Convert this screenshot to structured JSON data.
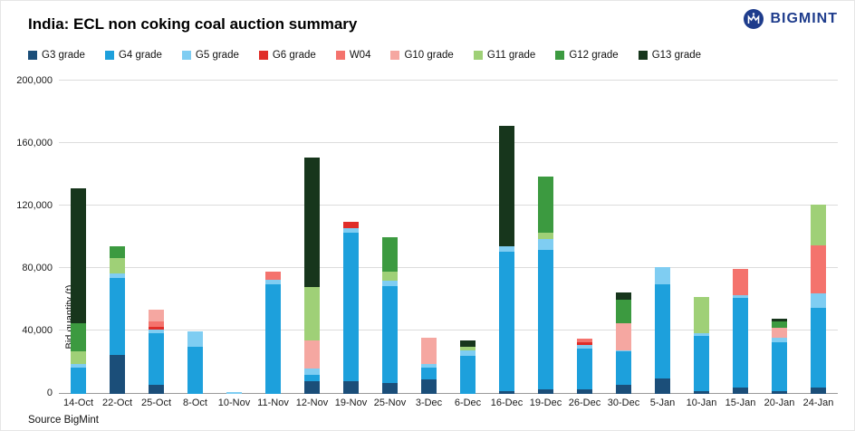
{
  "header": {
    "title": "India: ECL non coking coal auction summary",
    "logo_text": "BIGMINT",
    "logo_color": "#1e3c8c"
  },
  "footer": {
    "source_text": "Source BigMint"
  },
  "chart_data": {
    "type": "bar",
    "subtype": "stacked",
    "title": "India: ECL non coking coal auction summary",
    "xlabel": "",
    "ylabel": "Bid quantity (t)",
    "ylim": [
      0,
      200000
    ],
    "ytick_step": 40000,
    "yticks": [
      "0",
      "40,000",
      "80,000",
      "120,000",
      "160,000",
      "200,000"
    ],
    "grid": "horizontal",
    "legend_position": "top",
    "categories": [
      "14-Oct",
      "22-Oct",
      "25-Oct",
      "8-Oct",
      "10-Nov",
      "11-Nov",
      "12-Nov",
      "19-Nov",
      "25-Nov",
      "3-Dec",
      "6-Dec",
      "16-Dec",
      "19-Dec",
      "26-Dec",
      "30-Dec",
      "5-Jan",
      "10-Jan",
      "15-Jan",
      "20-Jan",
      "24-Jan"
    ],
    "series": [
      {
        "name": "G3 grade",
        "color": "#1b4e79",
        "values": [
          0,
          25000,
          6000,
          0,
          0,
          0,
          8000,
          8000,
          7000,
          9000,
          0,
          2000,
          3000,
          3000,
          6000,
          10000,
          2000,
          4000,
          2000,
          4000
        ]
      },
      {
        "name": "G4 grade",
        "color": "#1da0dc",
        "values": [
          17000,
          49000,
          33000,
          30000,
          0,
          70000,
          4000,
          95000,
          62000,
          8000,
          24000,
          89000,
          89000,
          26000,
          21000,
          60000,
          35000,
          57000,
          31000,
          51000
        ]
      },
      {
        "name": "G5 grade",
        "color": "#7fcdf2",
        "values": [
          2000,
          3000,
          2000,
          10000,
          1000,
          3000,
          4000,
          3000,
          3000,
          2000,
          4000,
          3000,
          7000,
          2000,
          1000,
          11000,
          2000,
          2000,
          3000,
          9000
        ]
      },
      {
        "name": "G6 grade",
        "color": "#e02d28",
        "values": [
          0,
          0,
          2000,
          0,
          0,
          0,
          0,
          4000,
          0,
          0,
          0,
          0,
          0,
          2000,
          0,
          0,
          0,
          0,
          0,
          0
        ]
      },
      {
        "name": "W04",
        "color": "#f4736d",
        "values": [
          0,
          0,
          3000,
          0,
          0,
          5000,
          0,
          0,
          0,
          0,
          0,
          0,
          0,
          2000,
          0,
          0,
          0,
          17000,
          0,
          31000
        ]
      },
      {
        "name": "G10 grade",
        "color": "#f5a7a1",
        "values": [
          0,
          0,
          8000,
          0,
          0,
          0,
          18000,
          0,
          0,
          17000,
          0,
          0,
          0,
          0,
          17000,
          0,
          0,
          0,
          6000,
          0
        ]
      },
      {
        "name": "G11 grade",
        "color": "#9fd077",
        "values": [
          8000,
          10000,
          0,
          0,
          0,
          0,
          34000,
          0,
          6000,
          0,
          2000,
          0,
          4000,
          0,
          0,
          0,
          23000,
          0,
          0,
          26000
        ]
      },
      {
        "name": "G12 grade",
        "color": "#3c9a40",
        "values": [
          18000,
          7000,
          0,
          0,
          0,
          0,
          0,
          0,
          22000,
          0,
          0,
          0,
          36000,
          0,
          15000,
          0,
          0,
          0,
          4000,
          0
        ]
      },
      {
        "name": "G13 grade",
        "color": "#17361c",
        "values": [
          86000,
          0,
          0,
          0,
          0,
          0,
          83000,
          0,
          0,
          0,
          4000,
          77000,
          0,
          0,
          5000,
          0,
          0,
          0,
          2000,
          0
        ]
      }
    ]
  }
}
